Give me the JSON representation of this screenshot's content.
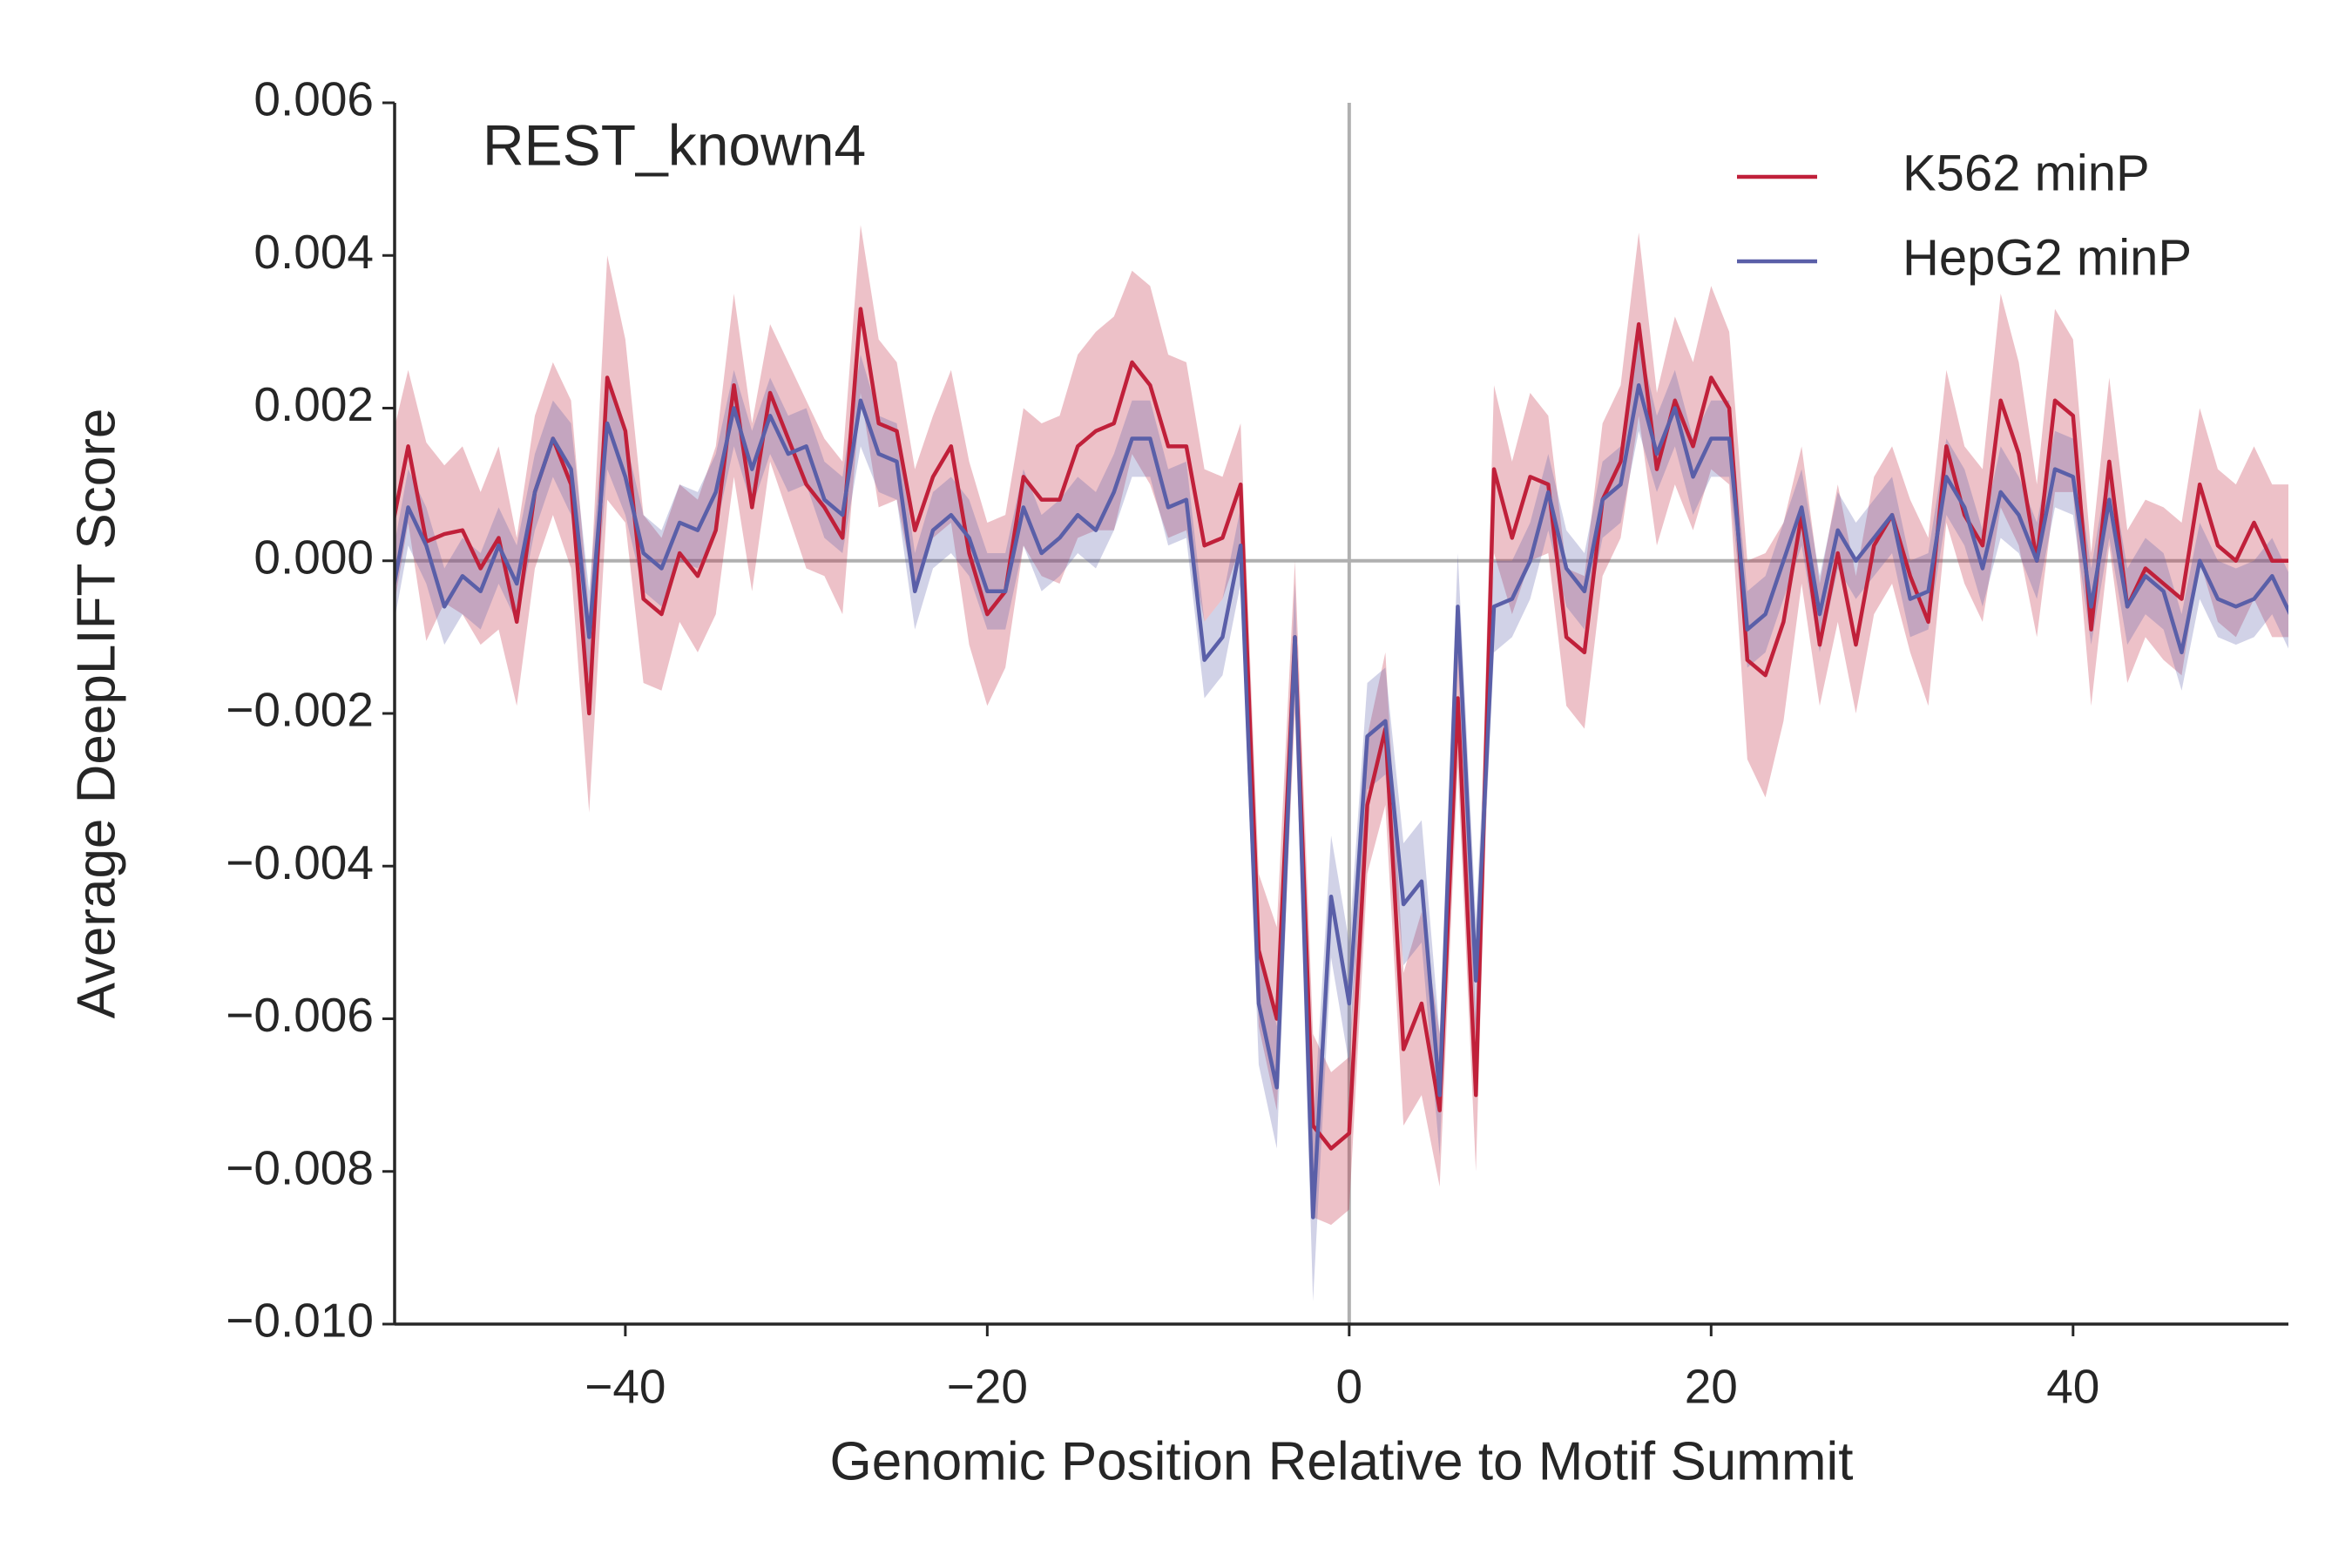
{
  "chart_data": {
    "type": "line",
    "annotation": "REST_known4",
    "xlabel": "Genomic Position Relative to Motif Summit",
    "ylabel": "Average DeepLIFT Score",
    "x": [
      -53,
      -52,
      -51,
      -50,
      -49,
      -48,
      -47,
      -46,
      -45,
      -44,
      -43,
      -42,
      -41,
      -40,
      -39,
      -38,
      -37,
      -36,
      -35,
      -34,
      -33,
      -32,
      -31,
      -30,
      -29,
      -28,
      -27,
      -26,
      -25,
      -24,
      -23,
      -22,
      -21,
      -20,
      -19,
      -18,
      -17,
      -16,
      -15,
      -14,
      -13,
      -12,
      -11,
      -10,
      -9,
      -8,
      -7,
      -6,
      -5,
      -4,
      -3,
      -2,
      -1,
      0,
      1,
      2,
      3,
      4,
      5,
      6,
      7,
      8,
      9,
      10,
      11,
      12,
      13,
      14,
      15,
      16,
      17,
      18,
      19,
      20,
      21,
      22,
      23,
      24,
      25,
      26,
      27,
      28,
      29,
      30,
      31,
      32,
      33,
      34,
      35,
      36,
      37,
      38,
      39,
      40,
      41,
      42,
      43,
      44,
      45,
      46,
      47,
      48,
      49,
      50,
      51,
      52
    ],
    "series": [
      {
        "name": "K562 minP",
        "color": "#c0203a",
        "values": [
          0.0003,
          0.0015,
          0.00025,
          0.00035,
          0.0004,
          -0.0001,
          0.0003,
          -0.0008,
          0.0009,
          0.0016,
          0.001,
          -0.002,
          0.0024,
          0.0017,
          -0.0005,
          -0.0007,
          0.0001,
          -0.0002,
          0.0004,
          0.0023,
          0.0007,
          0.0022,
          0.0016,
          0.001,
          0.0007,
          0.0003,
          0.0033,
          0.0018,
          0.0017,
          0.0004,
          0.0011,
          0.0015,
          0.0001,
          -0.0007,
          -0.0004,
          0.0011,
          0.0008,
          0.0008,
          0.0015,
          0.0017,
          0.0018,
          0.0026,
          0.0023,
          0.0015,
          0.0015,
          0.0002,
          0.0003,
          0.001,
          -0.0051,
          -0.006,
          -0.001,
          -0.0074,
          -0.0077,
          -0.0075,
          -0.0032,
          -0.0022,
          -0.0064,
          -0.0058,
          -0.0072,
          -0.0018,
          -0.007,
          0.0012,
          0.0003,
          0.0011,
          0.001,
          -0.001,
          -0.0012,
          0.0008,
          0.0013,
          0.0031,
          0.0012,
          0.0021,
          0.0015,
          0.0024,
          0.002,
          -0.0013,
          -0.0015,
          -0.0008,
          0.0006,
          -0.0011,
          0.0001,
          -0.0011,
          0.0002,
          0.0006,
          -0.0002,
          -0.0008,
          0.0015,
          0.0006,
          0.0002,
          0.0021,
          0.0014,
          0,
          0.0021,
          0.0019,
          -0.0009,
          0.0013,
          -0.0006,
          -0.0001,
          -0.0003,
          -0.0005,
          0.001,
          0.0002,
          0,
          0.0005,
          0,
          0
        ],
        "ci": [
          0.0012,
          0.001,
          0.0013,
          0.0009,
          0.0011,
          0.001,
          0.0012,
          0.0011,
          0.001,
          0.001,
          0.0011,
          0.0013,
          0.0016,
          0.0012,
          0.0011,
          0.001,
          0.0009,
          0.001,
          0.0011,
          0.0012,
          0.0011,
          0.0009,
          0.001,
          0.0011,
          0.0009,
          0.001,
          0.0011,
          0.0011,
          0.0009,
          0.0008,
          0.0008,
          0.001,
          0.0012,
          0.0012,
          0.001,
          0.0009,
          0.001,
          0.0011,
          0.0012,
          0.0013,
          0.0014,
          0.0012,
          0.0013,
          0.0012,
          0.0011,
          0.001,
          0.0008,
          0.0008,
          0.001,
          0.0012,
          0.001,
          0.0012,
          0.001,
          0.001,
          0.0009,
          0.001,
          0.001,
          0.0012,
          0.001,
          0.0009,
          0.001,
          0.0011,
          0.001,
          0.0011,
          0.0009,
          0.0009,
          0.001,
          0.001,
          0.001,
          0.0012,
          0.001,
          0.0011,
          0.0011,
          0.0012,
          0.001,
          0.0013,
          0.0016,
          0.0013,
          0.0009,
          0.0008,
          0.0009,
          0.0009,
          0.0009,
          0.0009,
          0.001,
          0.0011,
          0.001,
          0.0009,
          0.001,
          0.0014,
          0.0012,
          0.001,
          0.0012,
          0.001,
          0.001,
          0.0011,
          0.001,
          0.0009,
          0.001,
          0.001,
          0.001,
          0.001,
          0.001,
          0.001,
          0.001,
          0.001
        ]
      },
      {
        "name": "HepG2 minP",
        "color": "#5a5fa8",
        "values": [
          -0.0006,
          0.0007,
          0.0002,
          -0.0006,
          -0.0002,
          -0.0004,
          0.0002,
          -0.0003,
          0.0009,
          0.0016,
          0.0012,
          -0.001,
          0.0018,
          0.0011,
          0.0001,
          -0.0001,
          0.0005,
          0.0004,
          0.0009,
          0.002,
          0.0012,
          0.0019,
          0.0014,
          0.0015,
          0.0008,
          0.0006,
          0.0021,
          0.0014,
          0.0013,
          -0.0004,
          0.0004,
          0.0006,
          0.0003,
          -0.0004,
          -0.0004,
          0.0007,
          0.0001,
          0.0003,
          0.0006,
          0.0004,
          0.0009,
          0.0016,
          0.0016,
          0.0007,
          0.0008,
          -0.0013,
          -0.001,
          0.0002,
          -0.0058,
          -0.0069,
          -0.001,
          -0.0086,
          -0.0044,
          -0.0058,
          -0.0023,
          -0.0021,
          -0.0045,
          -0.0042,
          -0.007,
          -0.0006,
          -0.0055,
          -0.0006,
          -0.0005,
          0,
          0.0009,
          -0.0001,
          -0.0004,
          0.0008,
          0.001,
          0.0023,
          0.0014,
          0.002,
          0.0011,
          0.0016,
          0.0016,
          -0.0009,
          -0.0007,
          0,
          0.0007,
          -0.0007,
          0.0004,
          0,
          0.0003,
          0.0006,
          -0.0005,
          -0.0004,
          0.0011,
          0.0007,
          -0.0001,
          0.0009,
          0.0006,
          0,
          0.0012,
          0.0011,
          -0.0006,
          0.0008,
          -0.0006,
          -0.0002,
          -0.0004,
          -0.0012,
          0,
          -0.0005,
          -0.0006,
          -0.0005,
          -0.0002,
          -0.0007
        ],
        "ci": [
          0.0005,
          0.0005,
          0.0005,
          0.0005,
          0.0005,
          0.0005,
          0.0005,
          0.0005,
          0.0005,
          0.0005,
          0.0006,
          0.0006,
          0.0006,
          0.0005,
          0.0005,
          0.0005,
          0.0005,
          0.0005,
          0.0005,
          0.0005,
          0.0005,
          0.0005,
          0.0005,
          0.0005,
          0.0005,
          0.0005,
          0.0006,
          0.0005,
          0.0005,
          0.0005,
          0.0005,
          0.0005,
          0.0005,
          0.0005,
          0.0005,
          0.0005,
          0.0005,
          0.0005,
          0.0005,
          0.0005,
          0.0005,
          0.0005,
          0.0005,
          0.0005,
          0.0005,
          0.0005,
          0.0005,
          0.0005,
          0.0008,
          0.0008,
          0.0007,
          0.0011,
          0.0008,
          0.0008,
          0.0007,
          0.0007,
          0.0008,
          0.0008,
          0.0008,
          0.0007,
          0.0008,
          0.0006,
          0.0005,
          0.0005,
          0.0005,
          0.0005,
          0.0005,
          0.0005,
          0.0005,
          0.0006,
          0.0005,
          0.0005,
          0.0005,
          0.0005,
          0.0005,
          0.0005,
          0.0005,
          0.0005,
          0.0005,
          0.0005,
          0.0005,
          0.0005,
          0.0005,
          0.0005,
          0.0005,
          0.0005,
          0.0005,
          0.0005,
          0.0005,
          0.0006,
          0.0005,
          0.0005,
          0.0005,
          0.0005,
          0.0005,
          0.0005,
          0.0005,
          0.0005,
          0.0005,
          0.0005,
          0.0005,
          0.0005,
          0.0005,
          0.0005,
          0.0005,
          0.0005
        ]
      }
    ],
    "xlim": [
      -52.75,
      51.9
    ],
    "ylim": [
      -0.01,
      0.006
    ],
    "xticks": [
      {
        "value": -40,
        "label": "−40"
      },
      {
        "value": -20,
        "label": "−20"
      },
      0,
      20,
      40
    ],
    "yticks": [
      {
        "value": -0.01,
        "label": "−0.010"
      },
      {
        "value": -0.008,
        "label": "−0.008"
      },
      {
        "value": -0.006,
        "label": "−0.006"
      },
      {
        "value": -0.004,
        "label": "−0.004"
      },
      {
        "value": -0.002,
        "label": "−0.002"
      },
      {
        "value": 0,
        "label": "0.000"
      },
      0.002,
      0.004,
      0.006
    ],
    "reference_lines": {
      "x": 0,
      "y": 0
    },
    "legend": "upper right"
  }
}
